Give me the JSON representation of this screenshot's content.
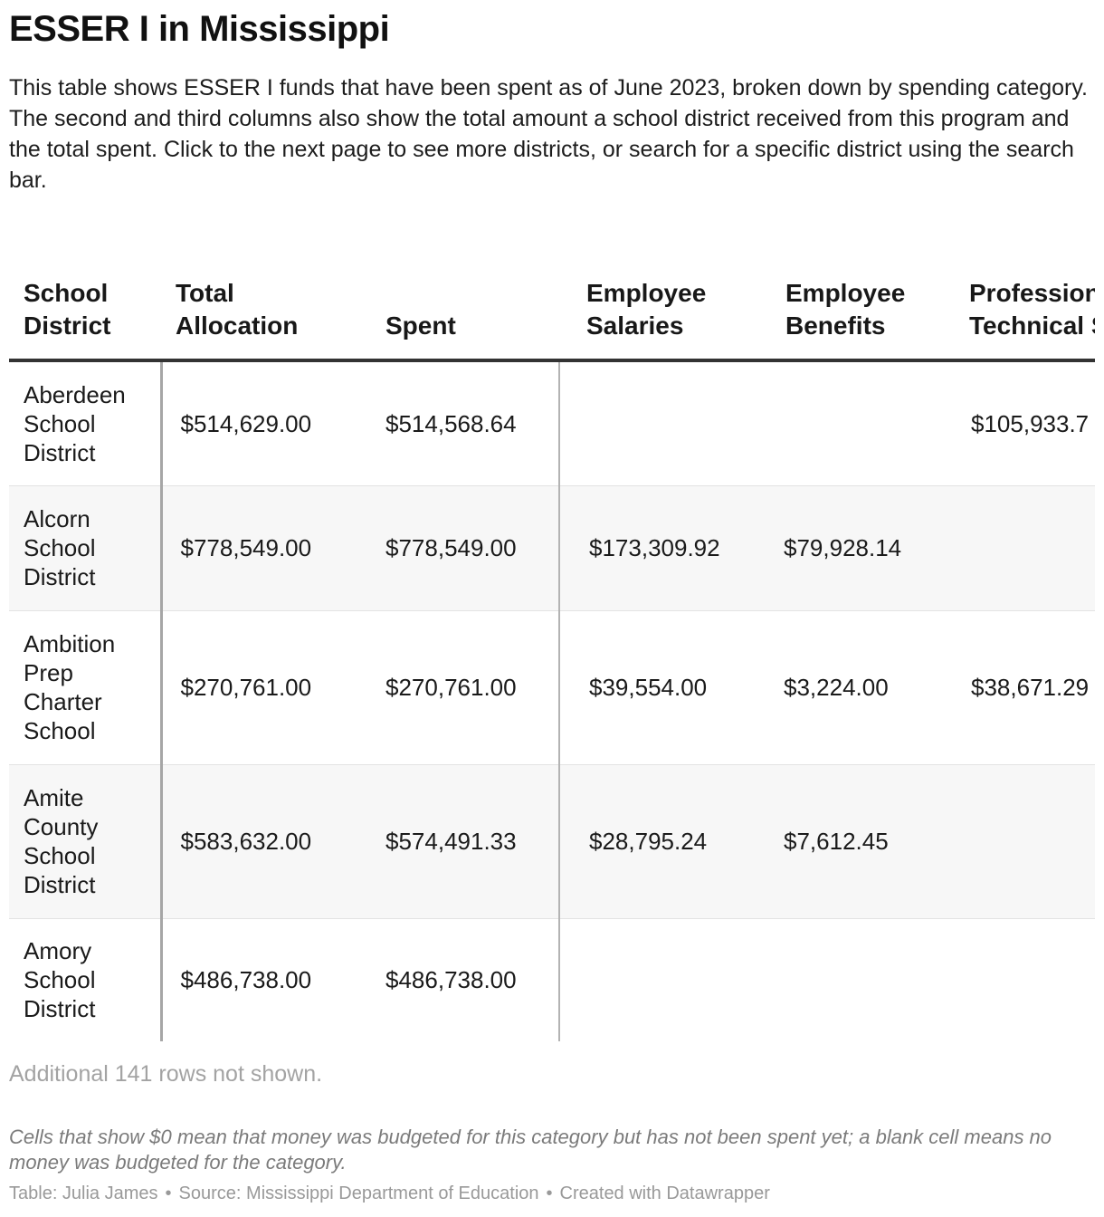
{
  "title": "ESSER I in Mississippi",
  "description": "This table shows ESSER I funds that have been spent as of June 2023, broken down by spending category. The second and third columns also show the total amount a school district received from this program and the total spent. Click to the next page to see more districts, or search for a specific district using the search bar.",
  "chart_data": {
    "type": "table",
    "columns": [
      "School District",
      "Total Allocation",
      "Spent",
      "Employee Salaries",
      "Employee Benefits",
      "Professional & Technical Services"
    ],
    "rows": [
      [
        "Aberdeen School District",
        "$514,629.00",
        "$514,568.64",
        "",
        "",
        "$105,933.7"
      ],
      [
        "Alcorn School District",
        "$778,549.00",
        "$778,549.00",
        "$173,309.92",
        "$79,928.14",
        ""
      ],
      [
        "Ambition Prep Charter School",
        "$270,761.00",
        "$270,761.00",
        "$39,554.00",
        "$3,224.00",
        "$38,671.29"
      ],
      [
        "Amite County School District",
        "$583,632.00",
        "$574,491.33",
        "$28,795.24",
        "$7,612.45",
        ""
      ],
      [
        "Amory School District",
        "$486,738.00",
        "$486,738.00",
        "",
        "",
        ""
      ]
    ]
  },
  "more_rows": "Additional 141 rows not shown.",
  "notes": "Cells that show $0 mean that money was budgeted for this category but has not been spent yet; a blank cell means no money was budgeted for the category.",
  "byline": {
    "author": "Table: Julia James",
    "source": "Source: Mississippi Department of Education",
    "tool": "Created with Datawrapper",
    "separator": "•"
  }
}
